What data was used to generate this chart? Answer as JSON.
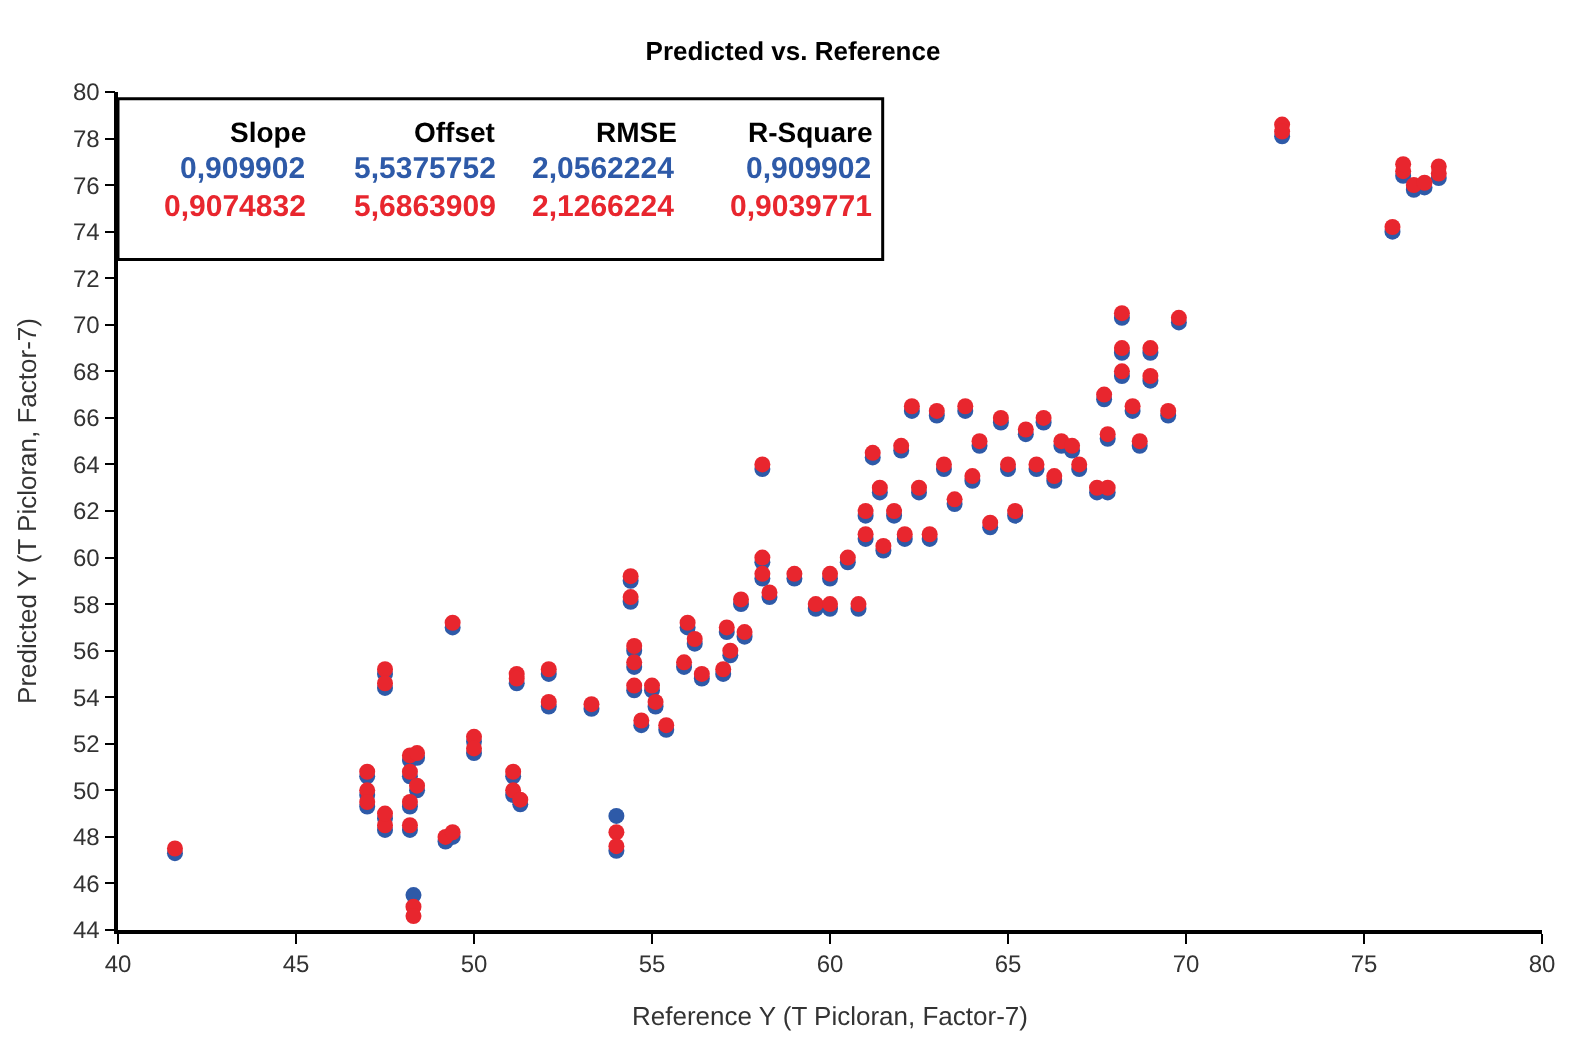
{
  "chart_data": {
    "type": "scatter",
    "title": "Predicted vs. Reference",
    "xlabel": "Reference Y (T Picloran, Factor-7)",
    "ylabel": "Predicted Y (T Picloran, Factor-7)",
    "xlim": [
      40,
      80
    ],
    "xticks": [
      40,
      45,
      50,
      55,
      60,
      65,
      70,
      75,
      80
    ],
    "ylim": [
      44,
      80
    ],
    "yticks": [
      44,
      46,
      48,
      50,
      52,
      54,
      56,
      58,
      60,
      62,
      64,
      66,
      68,
      70,
      72,
      74,
      76,
      78,
      80
    ],
    "marker": "circle",
    "annotations": [
      "Slope",
      "Offset",
      "RMSE",
      "R-Square",
      "0,909902",
      "5,5375752",
      "2,0562224",
      "0,909902",
      "0,9074832",
      "5,6863909",
      "2,1266224",
      "0,9039771"
    ],
    "x": [
      41.6,
      47.0,
      47.0,
      47.0,
      47.5,
      47.5,
      47.5,
      47.5,
      48.2,
      48.2,
      48.2,
      48.2,
      48.3,
      48.3,
      48.4,
      48.4,
      49.2,
      49.4,
      49.4,
      50.0,
      50.0,
      51.1,
      51.1,
      51.2,
      51.2,
      51.3,
      52.1,
      52.1,
      53.3,
      54.0,
      54.0,
      54.4,
      54.4,
      54.5,
      54.5,
      54.5,
      54.7,
      55.0,
      55.1,
      55.4,
      55.9,
      56.0,
      56.2,
      56.4,
      57.1,
      57.0,
      57.2,
      57.5,
      57.6,
      58.1,
      58.1,
      58.1,
      58.3,
      59.0,
      59.6,
      60.0,
      60.0,
      60.5,
      60.8,
      61.0,
      61.0,
      61.2,
      61.4,
      61.5,
      61.8,
      62.0,
      62.1,
      62.3,
      62.5,
      62.8,
      63.0,
      63.2,
      63.5,
      63.8,
      64.0,
      64.2,
      64.5,
      64.8,
      65.0,
      65.2,
      65.5,
      65.8,
      66.0,
      66.3,
      66.5,
      66.8,
      67.0,
      67.5,
      67.8,
      67.7,
      67.8,
      68.2,
      68.2,
      68.2,
      68.5,
      68.7,
      69.0,
      69.0,
      69.5,
      69.8,
      72.7,
      72.7,
      75.8,
      76.1,
      76.1,
      76.4,
      76.7,
      77.1,
      77.1
    ],
    "series": [
      {
        "color": "#2e5aa8",
        "values": [
          47.3,
          50.6,
          49.8,
          49.3,
          48.3,
          48.8,
          55.0,
          54.4,
          51.3,
          50.6,
          49.3,
          48.3,
          45.5,
          null,
          51.4,
          50.0,
          47.8,
          48.0,
          57.0,
          52.1,
          51.6,
          50.6,
          49.8,
          null,
          54.6,
          49.4,
          55.0,
          53.6,
          53.5,
          48.9,
          47.4,
          59.0,
          58.1,
          56.0,
          55.3,
          54.3,
          52.8,
          54.3,
          53.6,
          52.6,
          55.3,
          57.0,
          56.3,
          54.8,
          56.8,
          55.0,
          55.8,
          58.0,
          56.6,
          63.8,
          59.8,
          59.1,
          58.3,
          59.1,
          57.8,
          57.8,
          59.1,
          59.8,
          57.8,
          60.8,
          61.8,
          64.3,
          62.8,
          60.3,
          61.8,
          64.6,
          60.8,
          66.3,
          62.8,
          60.8,
          66.1,
          63.8,
          62.3,
          66.3,
          63.3,
          64.8,
          61.3,
          65.8,
          63.8,
          61.8,
          65.3,
          63.8,
          65.8,
          63.3,
          64.8,
          64.6,
          63.8,
          62.8,
          62.8,
          66.8,
          65.1,
          70.3,
          68.8,
          67.8,
          66.3,
          64.8,
          67.6,
          68.8,
          66.1,
          70.1,
          null,
          78.1,
          74.0,
          76.4,
          null,
          75.8,
          75.9,
          null,
          76.3
        ]
      },
      {
        "color": "#e8262e",
        "values": [
          47.5,
          50.8,
          50.0,
          49.5,
          48.5,
          49.0,
          55.2,
          54.6,
          51.5,
          50.8,
          49.5,
          48.5,
          45.0,
          44.6,
          51.6,
          50.2,
          48.0,
          48.2,
          57.2,
          52.3,
          51.8,
          50.8,
          50.0,
          55.0,
          54.8,
          49.6,
          55.2,
          53.8,
          53.7,
          48.2,
          47.6,
          59.2,
          58.3,
          56.2,
          55.5,
          54.5,
          53.0,
          54.5,
          53.8,
          52.8,
          55.5,
          57.2,
          56.5,
          55.0,
          57.0,
          55.2,
          56.0,
          58.2,
          56.8,
          64.0,
          60.0,
          59.3,
          58.5,
          59.3,
          58.0,
          58.0,
          59.3,
          60.0,
          58.0,
          61.0,
          62.0,
          64.5,
          63.0,
          60.5,
          62.0,
          64.8,
          61.0,
          66.5,
          63.0,
          61.0,
          66.3,
          64.0,
          62.5,
          66.5,
          63.5,
          65.0,
          61.5,
          66.0,
          64.0,
          62.0,
          65.5,
          64.0,
          66.0,
          63.5,
          65.0,
          64.8,
          64.0,
          63.0,
          63.0,
          67.0,
          65.3,
          70.5,
          69.0,
          68.0,
          66.5,
          65.0,
          67.8,
          69.0,
          66.3,
          70.3,
          78.6,
          78.3,
          74.2,
          76.6,
          76.9,
          76.0,
          76.1,
          76.8,
          76.5
        ]
      }
    ]
  }
}
